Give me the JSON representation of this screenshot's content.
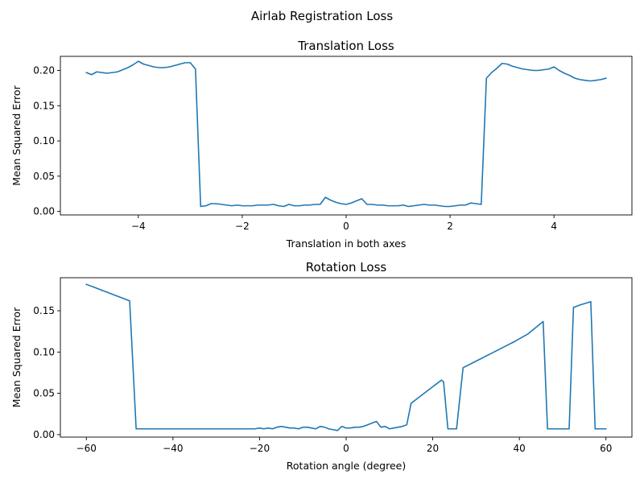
{
  "figure": {
    "suptitle": "Airlab Registration Loss"
  },
  "colors": {
    "line": "#1f77b4",
    "axis": "#000000",
    "background": "#ffffff"
  },
  "chart_data": [
    {
      "type": "line",
      "title": "Translation Loss",
      "xlabel": "Translation in both axes",
      "ylabel": "Mean Squared Error",
      "xlim": [
        -5.5,
        5.5
      ],
      "ylim": [
        -0.005,
        0.22
      ],
      "xticks": [
        -4,
        -2,
        0,
        2,
        4
      ],
      "xtick_labels": [
        "−4",
        "−2",
        "0",
        "2",
        "4"
      ],
      "yticks": [
        0.0,
        0.05,
        0.1,
        0.15,
        0.2
      ],
      "ytick_labels": [
        "0.00",
        "0.05",
        "0.10",
        "0.15",
        "0.20"
      ],
      "grid": false,
      "x": [
        -5.0,
        -4.9,
        -4.8,
        -4.7,
        -4.6,
        -4.5,
        -4.4,
        -4.3,
        -4.2,
        -4.1,
        -4.0,
        -3.9,
        -3.8,
        -3.7,
        -3.6,
        -3.5,
        -3.4,
        -3.3,
        -3.2,
        -3.1,
        -3.0,
        -2.9,
        -2.8,
        -2.7,
        -2.6,
        -2.5,
        -2.4,
        -2.3,
        -2.2,
        -2.1,
        -2.0,
        -1.9,
        -1.8,
        -1.7,
        -1.6,
        -1.5,
        -1.4,
        -1.3,
        -1.2,
        -1.1,
        -1.0,
        -0.9,
        -0.8,
        -0.7,
        -0.6,
        -0.5,
        -0.4,
        -0.3,
        -0.2,
        -0.1,
        0.0,
        0.1,
        0.2,
        0.3,
        0.4,
        0.5,
        0.6,
        0.7,
        0.8,
        0.9,
        1.0,
        1.1,
        1.2,
        1.3,
        1.4,
        1.5,
        1.6,
        1.7,
        1.8,
        1.9,
        2.0,
        2.1,
        2.2,
        2.3,
        2.4,
        2.5,
        2.6,
        2.7,
        2.8,
        2.9,
        3.0,
        3.1,
        3.2,
        3.3,
        3.4,
        3.5,
        3.6,
        3.7,
        3.8,
        3.9,
        4.0,
        4.1,
        4.2,
        4.3,
        4.4,
        4.5,
        4.6,
        4.7,
        4.8,
        4.9,
        5.0
      ],
      "y": [
        0.197,
        0.194,
        0.198,
        0.197,
        0.196,
        0.197,
        0.198,
        0.201,
        0.204,
        0.208,
        0.213,
        0.209,
        0.207,
        0.205,
        0.204,
        0.204,
        0.205,
        0.207,
        0.209,
        0.211,
        0.211,
        0.202,
        0.007,
        0.008,
        0.011,
        0.011,
        0.01,
        0.009,
        0.008,
        0.009,
        0.008,
        0.008,
        0.008,
        0.009,
        0.009,
        0.009,
        0.01,
        0.008,
        0.007,
        0.01,
        0.008,
        0.008,
        0.009,
        0.009,
        0.01,
        0.01,
        0.02,
        0.016,
        0.013,
        0.011,
        0.01,
        0.012,
        0.015,
        0.018,
        0.01,
        0.01,
        0.009,
        0.009,
        0.008,
        0.008,
        0.008,
        0.009,
        0.007,
        0.008,
        0.009,
        0.01,
        0.009,
        0.009,
        0.008,
        0.007,
        0.007,
        0.008,
        0.009,
        0.009,
        0.012,
        0.011,
        0.01,
        0.189,
        0.197,
        0.203,
        0.21,
        0.209,
        0.206,
        0.204,
        0.202,
        0.201,
        0.2,
        0.2,
        0.201,
        0.202,
        0.205,
        0.2,
        0.196,
        0.193,
        0.189,
        0.187,
        0.186,
        0.185,
        0.186,
        0.187,
        0.189
      ]
    },
    {
      "type": "line",
      "title": "Rotation Loss",
      "xlabel": "Rotation angle (degree)",
      "ylabel": "Mean Squared Error",
      "xlim": [
        -66,
        66
      ],
      "ylim": [
        -0.003,
        0.19
      ],
      "xticks": [
        -60,
        -40,
        -20,
        0,
        20,
        40,
        60
      ],
      "xtick_labels": [
        "−60",
        "−40",
        "−20",
        "0",
        "20",
        "40",
        "60"
      ],
      "yticks": [
        0.0,
        0.05,
        0.1,
        0.15
      ],
      "ytick_labels": [
        "0.00",
        "0.05",
        "0.10",
        "0.15"
      ],
      "grid": false,
      "x": [
        -60,
        -58,
        -56,
        -54,
        -52,
        -50,
        -48.5,
        -47,
        -45,
        -43,
        -41,
        -39,
        -37,
        -35,
        -33,
        -31,
        -29,
        -27,
        -25,
        -23,
        -21,
        -20,
        -19,
        -18,
        -17,
        -16,
        -15,
        -14,
        -13,
        -12,
        -11,
        -10,
        -9,
        -8,
        -7,
        -6,
        -5,
        -4,
        -3,
        -2,
        -1,
        0,
        1,
        2,
        3,
        4,
        5,
        6,
        7,
        8,
        9,
        10,
        11,
        12,
        13,
        14,
        15,
        16,
        17,
        18,
        19,
        20,
        21,
        22,
        22.5,
        23.5,
        24.5,
        25.5,
        27,
        30,
        33,
        36,
        39,
        42,
        45.5,
        46.5,
        47.5,
        49,
        50.5,
        51.5,
        52.5,
        54,
        56.5,
        57.5,
        59,
        60
      ],
      "y": [
        0.182,
        0.178,
        0.174,
        0.17,
        0.166,
        0.162,
        0.007,
        0.007,
        0.007,
        0.007,
        0.007,
        0.007,
        0.007,
        0.007,
        0.007,
        0.007,
        0.007,
        0.007,
        0.007,
        0.007,
        0.007,
        0.008,
        0.007,
        0.008,
        0.007,
        0.009,
        0.01,
        0.009,
        0.008,
        0.008,
        0.007,
        0.009,
        0.009,
        0.008,
        0.007,
        0.01,
        0.009,
        0.007,
        0.006,
        0.005,
        0.01,
        0.008,
        0.008,
        0.009,
        0.009,
        0.01,
        0.012,
        0.014,
        0.016,
        0.009,
        0.01,
        0.007,
        0.008,
        0.009,
        0.01,
        0.012,
        0.038,
        0.042,
        0.046,
        0.05,
        0.054,
        0.058,
        0.062,
        0.066,
        0.064,
        0.007,
        0.007,
        0.007,
        0.081,
        0.089,
        0.097,
        0.105,
        0.113,
        0.122,
        0.137,
        0.007,
        0.007,
        0.007,
        0.007,
        0.007,
        0.154,
        0.157,
        0.161,
        0.007,
        0.007,
        0.007
      ]
    }
  ]
}
